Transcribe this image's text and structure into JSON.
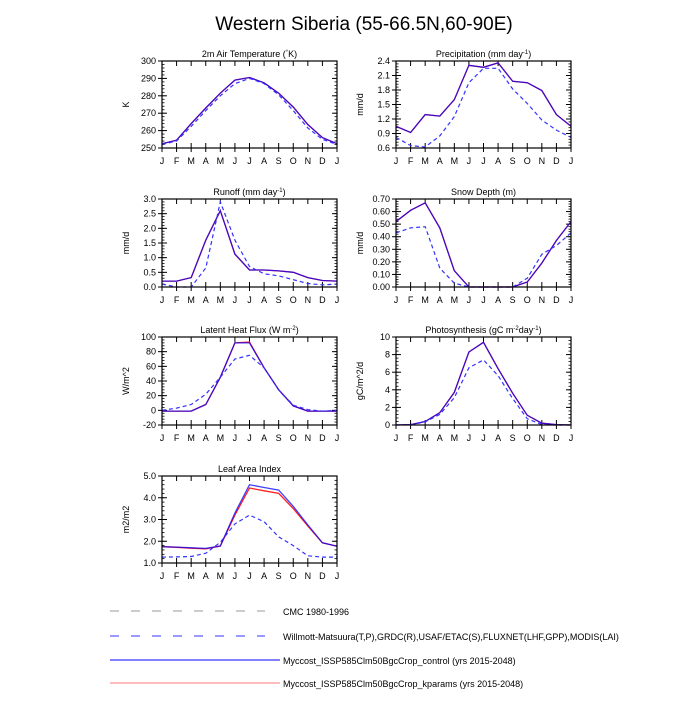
{
  "title": "Western Siberia (55-66.5N,60-90E)",
  "colors": {
    "control": "#0000ff",
    "kparams": "#ff2020",
    "obs": "#3333ff",
    "cmc": "#999999"
  },
  "legend": [
    {
      "label": "CMC 1980-1996",
      "style": "dashed",
      "color": "#999999"
    },
    {
      "label": "Willmott-Matsuura(T,P),GRDC(R),USAF/ETAC(S),FLUXNET(LHF,GPP),MODIS(LAI)",
      "style": "dashed",
      "color": "#3333ff"
    },
    {
      "label": "Myccost_ISSP585Clm50BgcCrop_control (yrs 2015-2048)",
      "style": "solid",
      "color": "#0000ff"
    },
    {
      "label": "Myccost_ISSP585Clm50BgcCrop_kparams (yrs 2015-2048)",
      "style": "solid",
      "color": "#ff2020"
    }
  ],
  "chart_data": [
    {
      "type": "line",
      "title": "2m Air Temperature (°K)",
      "ylabel": "K",
      "ylim": [
        250,
        300
      ],
      "yticks": [
        "250",
        "260",
        "270",
        "280",
        "290",
        "300"
      ],
      "categories": [
        "J",
        "F",
        "M",
        "A",
        "M",
        "J",
        "J",
        "A",
        "S",
        "O",
        "N",
        "D",
        "J"
      ],
      "series": [
        {
          "name": "Myccost_ISSP585Clm50BgcCrop_control (yrs 2015-2048)",
          "values": [
            252.5,
            254.5,
            264,
            273,
            281.5,
            289,
            290.5,
            287.5,
            281.5,
            273.5,
            263.5,
            256,
            252.5
          ]
        },
        {
          "name": "Myccost_ISSP585Clm50BgcCrop_kparams (yrs 2015-2048)",
          "values": [
            252.5,
            254.5,
            264,
            273,
            281.5,
            289,
            290.5,
            287.5,
            281.5,
            273.5,
            263.5,
            256,
            252.5
          ]
        },
        {
          "name": "Willmott-Matsuura(T,P),GRDC(R),USAF/ETAC(S),FLUXNET(LHF,GPP),MODIS(LAI)",
          "values": [
            252,
            254,
            262.5,
            271.5,
            280,
            287,
            290,
            287,
            280.5,
            271.5,
            261.5,
            255,
            252
          ]
        }
      ]
    },
    {
      "type": "line",
      "title": "Precipitation (mm day-1)",
      "ylabel": "mm/d",
      "ylim": [
        0.6,
        2.4
      ],
      "yticks": [
        "0.6",
        "0.9",
        "1.2",
        "1.5",
        "1.8",
        "2.1",
        "2.4"
      ],
      "categories": [
        "J",
        "F",
        "M",
        "A",
        "M",
        "J",
        "J",
        "A",
        "S",
        "O",
        "N",
        "D",
        "J"
      ],
      "series": [
        {
          "name": "Myccost_ISSP585Clm50BgcCrop_control (yrs 2015-2048)",
          "values": [
            1.05,
            0.92,
            1.29,
            1.26,
            1.6,
            2.31,
            2.27,
            2.36,
            1.98,
            1.95,
            1.79,
            1.29,
            1.05
          ]
        },
        {
          "name": "Myccost_ISSP585Clm50BgcCrop_kparams (yrs 2015-2048)",
          "values": [
            1.05,
            0.92,
            1.29,
            1.26,
            1.6,
            2.31,
            2.27,
            2.36,
            1.98,
            1.95,
            1.79,
            1.29,
            1.05
          ]
        },
        {
          "name": "Willmott-Matsuura(T,P),GRDC(R),USAF/ETAC(S),FLUXNET(LHF,GPP),MODIS(LAI)",
          "values": [
            0.82,
            0.65,
            0.62,
            0.85,
            1.25,
            1.95,
            2.25,
            2.25,
            1.82,
            1.52,
            1.18,
            0.97,
            0.82
          ]
        }
      ]
    },
    {
      "type": "line",
      "title": "Runoff (mm day-1)",
      "ylabel": "mm/d",
      "ylim": [
        0,
        3
      ],
      "yticks": [
        "0.0",
        "0.5",
        "1.0",
        "1.5",
        "2.0",
        "2.5",
        "3.0"
      ],
      "categories": [
        "J",
        "F",
        "M",
        "A",
        "M",
        "J",
        "J",
        "A",
        "S",
        "O",
        "N",
        "D",
        "J"
      ],
      "series": [
        {
          "name": "Myccost_ISSP585Clm50BgcCrop_control (yrs 2015-2048)",
          "values": [
            0.2,
            0.2,
            0.32,
            1.6,
            2.6,
            1.12,
            0.58,
            0.58,
            0.55,
            0.5,
            0.32,
            0.22,
            0.2
          ]
        },
        {
          "name": "Myccost_ISSP585Clm50BgcCrop_kparams (yrs 2015-2048)",
          "values": [
            0.2,
            0.2,
            0.32,
            1.6,
            2.6,
            1.12,
            0.58,
            0.58,
            0.55,
            0.5,
            0.32,
            0.22,
            0.2
          ]
        },
        {
          "name": "Willmott-Matsuura(T,P),GRDC(R),USAF/ETAC(S),FLUXNET(LHF,GPP),MODIS(LAI)",
          "values": [
            0.1,
            0,
            0,
            0.65,
            2.9,
            1.6,
            0.7,
            0.45,
            0.38,
            0.25,
            0.12,
            0.07,
            0.1
          ]
        }
      ]
    },
    {
      "type": "line",
      "title": "Snow Depth (m)",
      "ylabel": "mm/d",
      "ylim": [
        0,
        0.7
      ],
      "yticks": [
        "0.00",
        "0.10",
        "0.20",
        "0.30",
        "0.40",
        "0.50",
        "0.60",
        "0.70"
      ],
      "categories": [
        "J",
        "F",
        "M",
        "A",
        "M",
        "J",
        "J",
        "A",
        "S",
        "O",
        "N",
        "D",
        "J"
      ],
      "series": [
        {
          "name": "Myccost_ISSP585Clm50BgcCrop_control (yrs 2015-2048)",
          "values": [
            0.52,
            0.61,
            0.67,
            0.47,
            0.13,
            0,
            0,
            0,
            0,
            0.04,
            0.19,
            0.37,
            0.52
          ]
        },
        {
          "name": "Myccost_ISSP585Clm50BgcCrop_kparams (yrs 2015-2048)",
          "values": [
            0.52,
            0.61,
            0.67,
            0.47,
            0.13,
            0,
            0,
            0,
            0,
            0.04,
            0.19,
            0.37,
            0.52
          ]
        },
        {
          "name": "Willmott-Matsuura(T,P),GRDC(R),USAF/ETAC(S),FLUXNET(LHF,GPP),MODIS(LAI)",
          "values": [
            0.43,
            0.47,
            0.48,
            0.15,
            0.03,
            0,
            0,
            0,
            0,
            0.07,
            0.26,
            0.33,
            0.43
          ]
        }
      ]
    },
    {
      "type": "line",
      "title": "Latent Heat Flux (W m-2)",
      "ylabel": "W/m^2",
      "ylim": [
        -20,
        100
      ],
      "yticks": [
        "-20",
        "0",
        "20",
        "40",
        "60",
        "80",
        "100"
      ],
      "categories": [
        "J",
        "F",
        "M",
        "A",
        "M",
        "J",
        "J",
        "A",
        "S",
        "O",
        "N",
        "D",
        "J"
      ],
      "series": [
        {
          "name": "Myccost_ISSP585Clm50BgcCrop_control (yrs 2015-2048)",
          "values": [
            -1,
            -1,
            -1,
            8,
            45,
            92,
            92,
            58,
            28,
            6,
            -1,
            -1,
            -1
          ]
        },
        {
          "name": "Myccost_ISSP585Clm50BgcCrop_kparams (yrs 2015-2048)",
          "values": [
            -1,
            -1,
            -1,
            8,
            45,
            92,
            93,
            58,
            28,
            6,
            -1,
            -1,
            -1
          ]
        },
        {
          "name": "Willmott-Matsuura(T,P),GRDC(R),USAF/ETAC(S),FLUXNET(LHF,GPP),MODIS(LAI)",
          "values": [
            0,
            3,
            8,
            22,
            45,
            70,
            75,
            58,
            28,
            7,
            1,
            -1,
            0
          ]
        }
      ]
    },
    {
      "type": "line",
      "title": "Photosynthesis (gC m-2day-1)",
      "ylabel": "gC/m^2/d",
      "ylim": [
        0,
        10
      ],
      "yticks": [
        "0",
        "2",
        "4",
        "6",
        "8",
        "10"
      ],
      "categories": [
        "J",
        "F",
        "M",
        "A",
        "M",
        "J",
        "J",
        "A",
        "S",
        "O",
        "N",
        "D",
        "J"
      ],
      "series": [
        {
          "name": "Myccost_ISSP585Clm50BgcCrop_control (yrs 2015-2048)",
          "values": [
            0,
            0.05,
            0.4,
            1.4,
            3.7,
            8.3,
            9.4,
            6.4,
            3.6,
            1.1,
            0.2,
            0.05,
            0
          ]
        },
        {
          "name": "Myccost_ISSP585Clm50BgcCrop_kparams (yrs 2015-2048)",
          "values": [
            0,
            0.05,
            0.4,
            1.4,
            3.7,
            8.3,
            9.4,
            6.4,
            3.6,
            1.1,
            0.2,
            0.05,
            0
          ]
        },
        {
          "name": "Willmott-Matsuura(T,P),GRDC(R),USAF/ETAC(S),FLUXNET(LHF,GPP),MODIS(LAI)",
          "values": [
            0,
            0.03,
            0.35,
            1.2,
            3.1,
            6.5,
            7.4,
            5.6,
            3.0,
            0.7,
            0.05,
            0,
            0
          ]
        }
      ]
    },
    {
      "type": "line",
      "title": "Leaf Area Index",
      "ylabel": "m2/m2",
      "ylim": [
        1,
        5
      ],
      "yticks": [
        "1.0",
        "2.0",
        "3.0",
        "4.0",
        "5.0"
      ],
      "categories": [
        "J",
        "F",
        "M",
        "A",
        "M",
        "J",
        "J",
        "A",
        "S",
        "O",
        "N",
        "D",
        "J"
      ],
      "series": [
        {
          "name": "Myccost_ISSP585Clm50BgcCrop_control (yrs 2015-2048)",
          "values": [
            1.75,
            1.73,
            1.7,
            1.67,
            1.78,
            3.3,
            4.6,
            4.47,
            4.35,
            3.6,
            2.75,
            1.93,
            1.77
          ]
        },
        {
          "name": "Myccost_ISSP585Clm50BgcCrop_kparams (yrs 2015-2048)",
          "values": [
            1.75,
            1.72,
            1.68,
            1.65,
            1.78,
            3.2,
            4.45,
            4.32,
            4.2,
            3.5,
            2.7,
            1.93,
            1.77
          ]
        },
        {
          "name": "Willmott-Matsuura(T,P),GRDC(R),USAF/ETAC(S),FLUXNET(LHF,GPP),MODIS(LAI)",
          "values": [
            1.27,
            1.28,
            1.3,
            1.45,
            1.95,
            2.8,
            3.2,
            2.9,
            2.2,
            1.8,
            1.33,
            1.27,
            1.27
          ]
        }
      ]
    }
  ]
}
